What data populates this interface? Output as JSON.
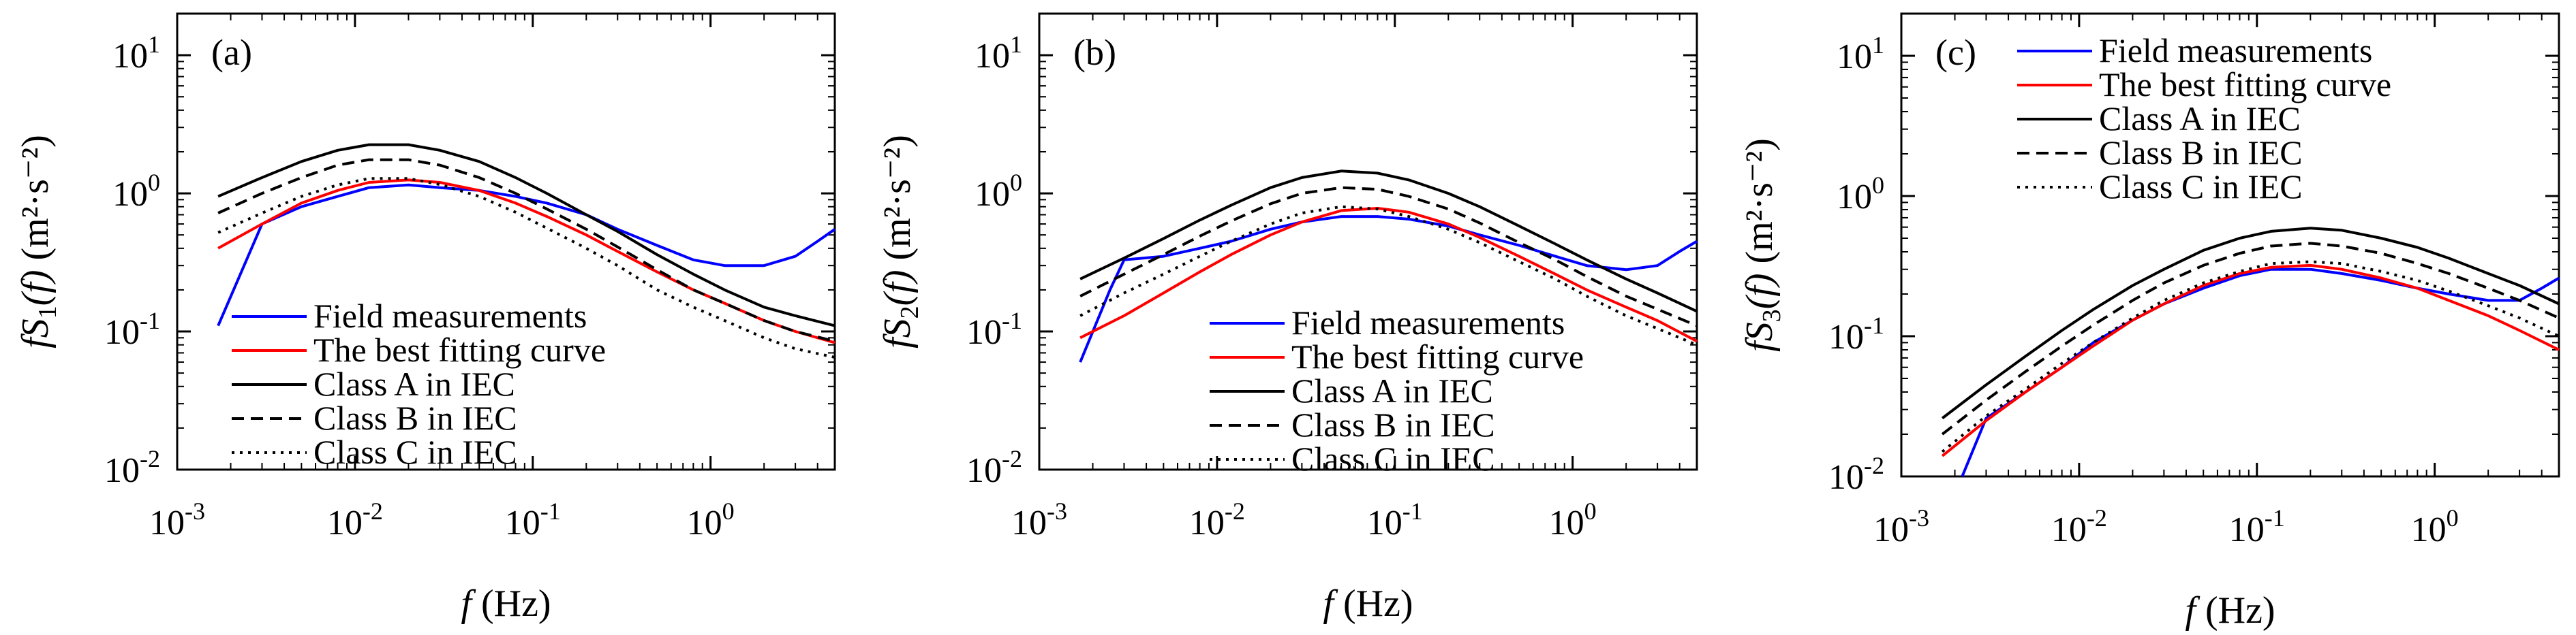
{
  "chart_data": [
    {
      "type": "line",
      "panel_label": "(a)",
      "xlabel_main": "f",
      "xlabel_unit": "(Hz)",
      "ylabel_parts": {
        "fs": "fS",
        "sub": "1",
        "arg": "(f)",
        "unit": "(m²·s⁻²)"
      },
      "xscale": "log",
      "yscale": "log",
      "xlim": [
        0.001,
        5
      ],
      "ylim": [
        0.01,
        20
      ],
      "xticks": [
        {
          "v": 0.001,
          "label": "10",
          "exp": "-3"
        },
        {
          "v": 0.01,
          "label": "10",
          "exp": "-2"
        },
        {
          "v": 0.1,
          "label": "10",
          "exp": "-1"
        },
        {
          "v": 1,
          "label": "10",
          "exp": "0"
        }
      ],
      "yticks": [
        {
          "v": 0.01,
          "label": "10",
          "exp": "-2"
        },
        {
          "v": 0.1,
          "label": "10",
          "exp": "-1"
        },
        {
          "v": 1,
          "label": "10",
          "exp": "0"
        },
        {
          "v": 10,
          "label": "10",
          "exp": "1"
        }
      ],
      "legend_position": "bottom-left",
      "series": [
        {
          "name": "Field measurements",
          "color": "#0000ff",
          "style": "solid",
          "x": [
            0.0017,
            0.003,
            0.005,
            0.008,
            0.012,
            0.02,
            0.03,
            0.05,
            0.08,
            0.12,
            0.2,
            0.3,
            0.5,
            0.8,
            1.2,
            2,
            3,
            4,
            5
          ],
          "y": [
            0.11,
            0.6,
            0.8,
            0.95,
            1.1,
            1.15,
            1.1,
            1.05,
            0.95,
            0.85,
            0.7,
            0.55,
            0.42,
            0.33,
            0.3,
            0.3,
            0.35,
            0.45,
            0.55
          ]
        },
        {
          "name": "The best fitting curve",
          "color": "#ff0000",
          "style": "solid",
          "x": [
            0.0017,
            0.003,
            0.005,
            0.008,
            0.012,
            0.02,
            0.03,
            0.05,
            0.08,
            0.12,
            0.2,
            0.3,
            0.5,
            0.8,
            1.2,
            2,
            3,
            5
          ],
          "y": [
            0.4,
            0.6,
            0.85,
            1.05,
            1.2,
            1.25,
            1.2,
            1.05,
            0.85,
            0.68,
            0.5,
            0.38,
            0.27,
            0.2,
            0.16,
            0.12,
            0.1,
            0.083
          ]
        },
        {
          "name": "Class A in IEC",
          "color": "#000000",
          "style": "solid",
          "x": [
            0.0017,
            0.003,
            0.005,
            0.008,
            0.012,
            0.02,
            0.03,
            0.05,
            0.08,
            0.12,
            0.2,
            0.3,
            0.5,
            0.8,
            1.2,
            2,
            3,
            5
          ],
          "y": [
            0.95,
            1.3,
            1.7,
            2.05,
            2.25,
            2.25,
            2.05,
            1.7,
            1.3,
            1.0,
            0.7,
            0.53,
            0.36,
            0.26,
            0.2,
            0.15,
            0.13,
            0.11
          ]
        },
        {
          "name": "Class B in IEC",
          "color": "#000000",
          "style": "dashed",
          "x": [
            0.0017,
            0.003,
            0.005,
            0.008,
            0.012,
            0.02,
            0.03,
            0.05,
            0.08,
            0.12,
            0.2,
            0.3,
            0.5,
            0.8,
            1.2,
            2,
            3,
            5
          ],
          "y": [
            0.72,
            1.0,
            1.3,
            1.6,
            1.75,
            1.75,
            1.6,
            1.3,
            1.0,
            0.77,
            0.55,
            0.41,
            0.28,
            0.2,
            0.16,
            0.12,
            0.1,
            0.085
          ]
        },
        {
          "name": "Class C in IEC",
          "color": "#000000",
          "style": "dotted",
          "x": [
            0.0017,
            0.003,
            0.005,
            0.008,
            0.012,
            0.02,
            0.03,
            0.05,
            0.08,
            0.12,
            0.2,
            0.3,
            0.5,
            0.8,
            1.2,
            2,
            3,
            5
          ],
          "y": [
            0.52,
            0.72,
            0.95,
            1.15,
            1.28,
            1.28,
            1.16,
            0.95,
            0.73,
            0.56,
            0.4,
            0.3,
            0.2,
            0.15,
            0.12,
            0.09,
            0.075,
            0.065
          ]
        }
      ]
    },
    {
      "type": "line",
      "panel_label": "(b)",
      "xlabel_main": "f",
      "xlabel_unit": "(Hz)",
      "ylabel_parts": {
        "fs": "fS",
        "sub": "2",
        "arg": "(f)",
        "unit": "(m²·s⁻²)"
      },
      "xscale": "log",
      "yscale": "log",
      "xlim": [
        0.001,
        5
      ],
      "ylim": [
        0.01,
        20
      ],
      "xticks": [
        {
          "v": 0.001,
          "label": "10",
          "exp": "-3"
        },
        {
          "v": 0.01,
          "label": "10",
          "exp": "-2"
        },
        {
          "v": 0.1,
          "label": "10",
          "exp": "-1"
        },
        {
          "v": 1,
          "label": "10",
          "exp": "0"
        }
      ],
      "yticks": [
        {
          "v": 0.01,
          "label": "10",
          "exp": "-2"
        },
        {
          "v": 0.1,
          "label": "10",
          "exp": "-1"
        },
        {
          "v": 1,
          "label": "10",
          "exp": "0"
        },
        {
          "v": 10,
          "label": "10",
          "exp": "1"
        }
      ],
      "legend_position": "bottom-right",
      "series": [
        {
          "name": "Field measurements",
          "color": "#0000ff",
          "style": "solid",
          "x": [
            0.0017,
            0.0025,
            0.003,
            0.005,
            0.008,
            0.012,
            0.02,
            0.03,
            0.05,
            0.08,
            0.12,
            0.2,
            0.3,
            0.5,
            0.8,
            1.2,
            2,
            3,
            4,
            5
          ],
          "y": [
            0.06,
            0.2,
            0.33,
            0.35,
            0.4,
            0.45,
            0.55,
            0.62,
            0.68,
            0.68,
            0.65,
            0.58,
            0.5,
            0.42,
            0.35,
            0.3,
            0.28,
            0.3,
            0.38,
            0.45
          ]
        },
        {
          "name": "The best fitting curve",
          "color": "#ff0000",
          "style": "solid",
          "x": [
            0.0017,
            0.003,
            0.005,
            0.008,
            0.012,
            0.02,
            0.03,
            0.05,
            0.08,
            0.12,
            0.2,
            0.3,
            0.5,
            0.8,
            1.2,
            2,
            3,
            5
          ],
          "y": [
            0.09,
            0.13,
            0.19,
            0.27,
            0.36,
            0.5,
            0.62,
            0.75,
            0.78,
            0.73,
            0.6,
            0.48,
            0.35,
            0.26,
            0.2,
            0.15,
            0.12,
            0.085
          ]
        },
        {
          "name": "Class A in IEC",
          "color": "#000000",
          "style": "solid",
          "x": [
            0.0017,
            0.003,
            0.005,
            0.008,
            0.012,
            0.02,
            0.03,
            0.05,
            0.08,
            0.12,
            0.2,
            0.3,
            0.5,
            0.8,
            1.2,
            2,
            3,
            5
          ],
          "y": [
            0.24,
            0.34,
            0.47,
            0.64,
            0.82,
            1.1,
            1.3,
            1.45,
            1.4,
            1.25,
            1.0,
            0.8,
            0.58,
            0.43,
            0.33,
            0.24,
            0.19,
            0.14
          ]
        },
        {
          "name": "Class B in IEC",
          "color": "#000000",
          "style": "dashed",
          "x": [
            0.0017,
            0.003,
            0.005,
            0.008,
            0.012,
            0.02,
            0.03,
            0.05,
            0.08,
            0.12,
            0.2,
            0.3,
            0.5,
            0.8,
            1.2,
            2,
            3,
            5
          ],
          "y": [
            0.18,
            0.26,
            0.36,
            0.49,
            0.63,
            0.84,
            1.0,
            1.1,
            1.07,
            0.95,
            0.77,
            0.61,
            0.44,
            0.33,
            0.25,
            0.18,
            0.145,
            0.11
          ]
        },
        {
          "name": "Class C in IEC",
          "color": "#000000",
          "style": "dotted",
          "x": [
            0.0017,
            0.003,
            0.005,
            0.008,
            0.012,
            0.02,
            0.03,
            0.05,
            0.08,
            0.12,
            0.2,
            0.3,
            0.5,
            0.8,
            1.2,
            2,
            3,
            5
          ],
          "y": [
            0.13,
            0.19,
            0.26,
            0.35,
            0.45,
            0.6,
            0.72,
            0.8,
            0.77,
            0.68,
            0.55,
            0.44,
            0.32,
            0.24,
            0.18,
            0.13,
            0.105,
            0.08
          ]
        }
      ]
    },
    {
      "type": "line",
      "panel_label": "(c)",
      "xlabel_main": "f",
      "xlabel_unit": "(Hz)",
      "ylabel_parts": {
        "fs": "fS",
        "sub": "3",
        "arg": "(f)",
        "unit": "(m²·s⁻²)"
      },
      "xscale": "log",
      "yscale": "log",
      "xlim": [
        0.001,
        5
      ],
      "ylim": [
        0.01,
        20
      ],
      "xticks": [
        {
          "v": 0.001,
          "label": "10",
          "exp": "-3"
        },
        {
          "v": 0.01,
          "label": "10",
          "exp": "-2"
        },
        {
          "v": 0.1,
          "label": "10",
          "exp": "-1"
        },
        {
          "v": 1,
          "label": "10",
          "exp": "0"
        }
      ],
      "yticks": [
        {
          "v": 0.01,
          "label": "10",
          "exp": "-2"
        },
        {
          "v": 0.1,
          "label": "10",
          "exp": "-1"
        },
        {
          "v": 1,
          "label": "10",
          "exp": "0"
        },
        {
          "v": 10,
          "label": "10",
          "exp": "1"
        }
      ],
      "legend_position": "top-right",
      "series": [
        {
          "name": "Field measurements",
          "color": "#0000ff",
          "style": "solid",
          "x": [
            0.0022,
            0.003,
            0.005,
            0.008,
            0.012,
            0.02,
            0.03,
            0.05,
            0.08,
            0.12,
            0.2,
            0.3,
            0.5,
            0.8,
            1.2,
            2,
            3,
            4,
            5
          ],
          "y": [
            0.01,
            0.026,
            0.04,
            0.06,
            0.09,
            0.13,
            0.17,
            0.22,
            0.27,
            0.3,
            0.3,
            0.28,
            0.25,
            0.22,
            0.2,
            0.18,
            0.18,
            0.22,
            0.26
          ]
        },
        {
          "name": "The best fitting curve",
          "color": "#ff0000",
          "style": "solid",
          "x": [
            0.0017,
            0.003,
            0.005,
            0.008,
            0.012,
            0.02,
            0.03,
            0.05,
            0.08,
            0.12,
            0.2,
            0.3,
            0.5,
            0.8,
            1.2,
            2,
            3,
            5
          ],
          "y": [
            0.014,
            0.025,
            0.04,
            0.06,
            0.085,
            0.13,
            0.17,
            0.23,
            0.28,
            0.31,
            0.32,
            0.3,
            0.26,
            0.22,
            0.18,
            0.14,
            0.11,
            0.08
          ]
        },
        {
          "name": "Class A in IEC",
          "color": "#000000",
          "style": "solid",
          "x": [
            0.0017,
            0.003,
            0.005,
            0.008,
            0.012,
            0.02,
            0.03,
            0.05,
            0.08,
            0.12,
            0.2,
            0.3,
            0.5,
            0.8,
            1.2,
            2,
            3,
            5
          ],
          "y": [
            0.026,
            0.045,
            0.072,
            0.11,
            0.155,
            0.23,
            0.3,
            0.41,
            0.5,
            0.56,
            0.59,
            0.57,
            0.5,
            0.43,
            0.36,
            0.28,
            0.23,
            0.17
          ]
        },
        {
          "name": "Class B in IEC",
          "color": "#000000",
          "style": "dashed",
          "x": [
            0.0017,
            0.003,
            0.005,
            0.008,
            0.012,
            0.02,
            0.03,
            0.05,
            0.08,
            0.12,
            0.2,
            0.3,
            0.5,
            0.8,
            1.2,
            2,
            3,
            5
          ],
          "y": [
            0.02,
            0.035,
            0.056,
            0.085,
            0.12,
            0.18,
            0.24,
            0.32,
            0.39,
            0.44,
            0.46,
            0.44,
            0.39,
            0.33,
            0.28,
            0.22,
            0.18,
            0.135
          ]
        },
        {
          "name": "Class C in IEC",
          "color": "#000000",
          "style": "dotted",
          "x": [
            0.0017,
            0.003,
            0.005,
            0.008,
            0.012,
            0.02,
            0.03,
            0.05,
            0.08,
            0.12,
            0.2,
            0.3,
            0.5,
            0.8,
            1.2,
            2,
            3,
            5
          ],
          "y": [
            0.015,
            0.027,
            0.042,
            0.064,
            0.09,
            0.135,
            0.18,
            0.24,
            0.29,
            0.33,
            0.34,
            0.33,
            0.29,
            0.25,
            0.21,
            0.165,
            0.135,
            0.1
          ]
        }
      ]
    }
  ]
}
